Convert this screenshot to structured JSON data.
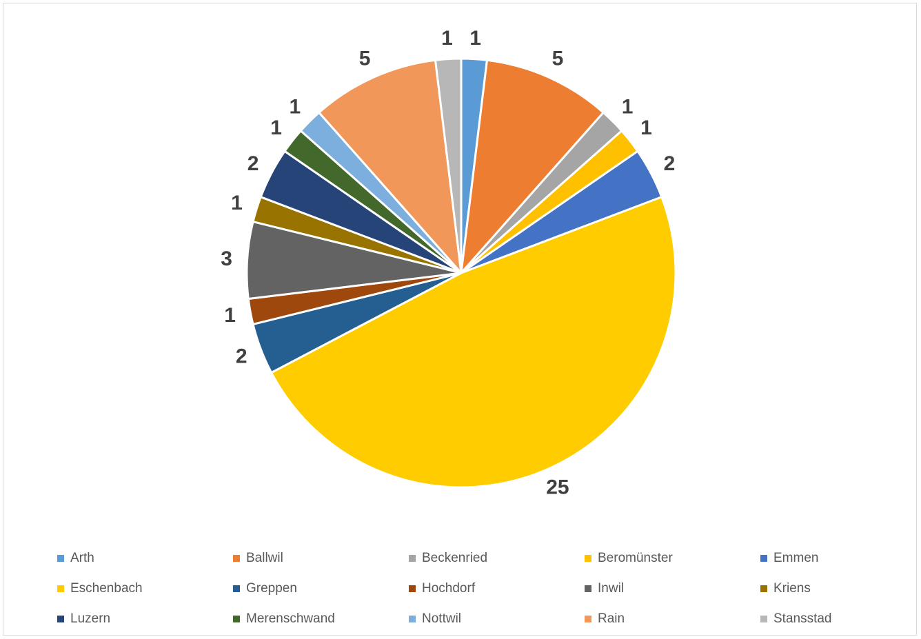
{
  "chart_data": {
    "type": "pie",
    "title": "",
    "legend_position": "bottom",
    "data_labels": true,
    "start_angle": "top",
    "slices": [
      {
        "label": "Arth",
        "value": 1,
        "color": "#5B9BD5"
      },
      {
        "label": "Ballwil",
        "value": 5,
        "color": "#ED7D31"
      },
      {
        "label": "Beckenried",
        "value": 1,
        "color": "#A5A5A5"
      },
      {
        "label": "Beromünster",
        "value": 1,
        "color": "#FFC000"
      },
      {
        "label": "Emmen",
        "value": 2,
        "color": "#4472C4"
      },
      {
        "label": "Eschenbach",
        "value": 25,
        "color": "#FFCC00"
      },
      {
        "label": "Greppen",
        "value": 2,
        "color": "#255E91"
      },
      {
        "label": "Hochdorf",
        "value": 1,
        "color": "#9E480E"
      },
      {
        "label": "Inwil",
        "value": 3,
        "color": "#636363"
      },
      {
        "label": "Kriens",
        "value": 1,
        "color": "#997300"
      },
      {
        "label": "Luzern",
        "value": 2,
        "color": "#264478"
      },
      {
        "label": "Merenschwand",
        "value": 1,
        "color": "#43682B"
      },
      {
        "label": "Nottwil",
        "value": 1,
        "color": "#7CAFDD"
      },
      {
        "label": "Rain",
        "value": 5,
        "color": "#F1975A"
      },
      {
        "label": "Stansstad",
        "value": 1,
        "color": "#B7B7B7"
      }
    ]
  }
}
